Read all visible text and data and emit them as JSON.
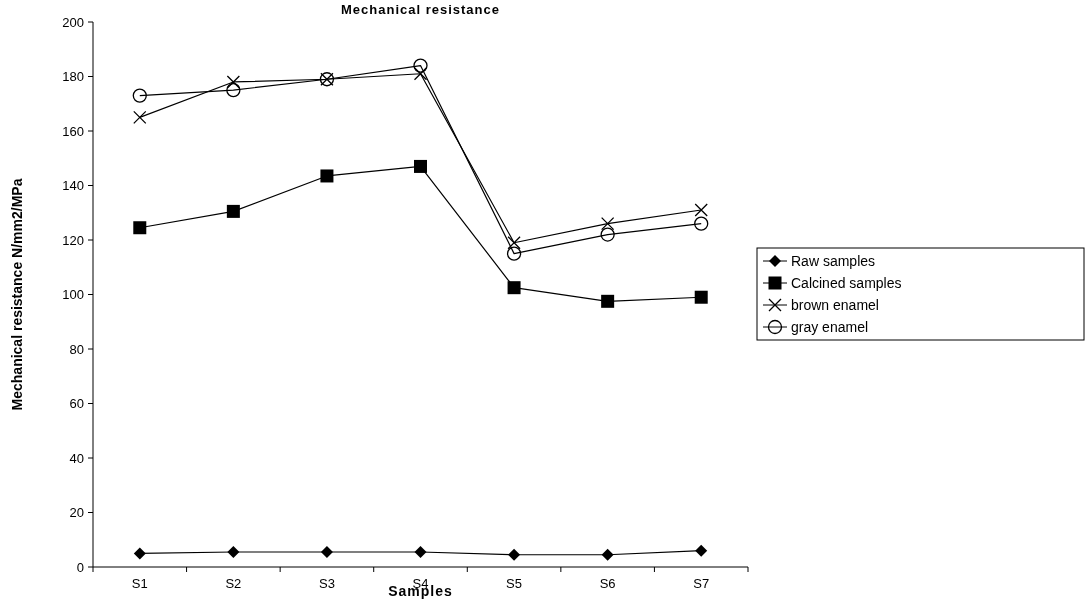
{
  "chart_data": {
    "type": "line",
    "title": "Mechanical resistance",
    "xlabel": "Samples",
    "ylabel": "Mechanical resistance N/mm2/MPa",
    "categories": [
      "S1",
      "S2",
      "S3",
      "S4",
      "S5",
      "S6",
      "S7"
    ],
    "ylim": [
      0,
      200
    ],
    "yticks": [
      0,
      20,
      40,
      60,
      80,
      100,
      120,
      140,
      160,
      180,
      200
    ],
    "grid": false,
    "legend": "right",
    "series": [
      {
        "name": "Raw samples",
        "color": "#000000",
        "marker": "diamond",
        "values": [
          5,
          5.5,
          5.5,
          5.5,
          4.5,
          4.5,
          6
        ]
      },
      {
        "name": "Calcined samples",
        "color": "#000000",
        "marker": "square",
        "values": [
          124.5,
          130.5,
          143.5,
          147,
          102.5,
          97.5,
          99
        ]
      },
      {
        "name": "brown enamel",
        "color": "#000000",
        "marker": "cross",
        "values": [
          165,
          178,
          179,
          181,
          119,
          126,
          131
        ]
      },
      {
        "name": "gray enamel",
        "color": "#000000",
        "marker": "circle",
        "values": [
          173,
          175,
          179,
          184,
          115,
          122,
          126
        ]
      }
    ]
  }
}
